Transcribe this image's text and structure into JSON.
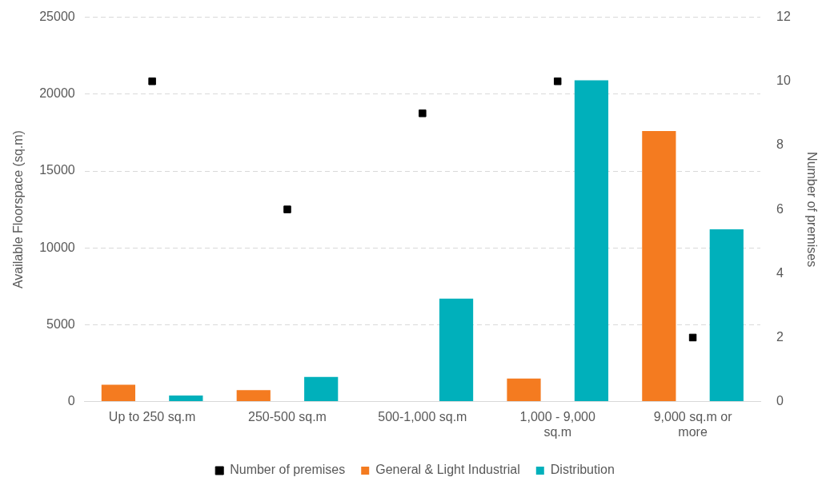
{
  "chart_data": {
    "type": "bar",
    "ylabel": "Available Floorspace (sq.m)",
    "y2label": "Number of premises",
    "categories": [
      "Up to 250 sq.m",
      "250-500 sq.m",
      "500-1,000 sq.m",
      "1,000 - 9,000 sq.m",
      "9,000 sq.m or more"
    ],
    "series": [
      {
        "name": "General & Light Industrial",
        "color": "#f47b20",
        "values": [
          1100,
          750,
          null,
          1500,
          17600
        ]
      },
      {
        "name": "Distribution",
        "color": "#00b0bb",
        "values": [
          400,
          1600,
          6700,
          20900,
          11200
        ]
      },
      {
        "name": "Number of premises",
        "type": "scatter",
        "axis": "y2",
        "color": "#000000",
        "marker": "square",
        "values": [
          10,
          6,
          9,
          10,
          2
        ]
      }
    ],
    "ylim": [
      0,
      25000
    ],
    "yticks": [
      0,
      5000,
      10000,
      15000,
      20000,
      25000
    ],
    "y2lim": [
      0,
      12
    ],
    "y2ticks": [
      0,
      2,
      4,
      6,
      8,
      10,
      12
    ],
    "grid": "y",
    "legend": "bottom"
  }
}
